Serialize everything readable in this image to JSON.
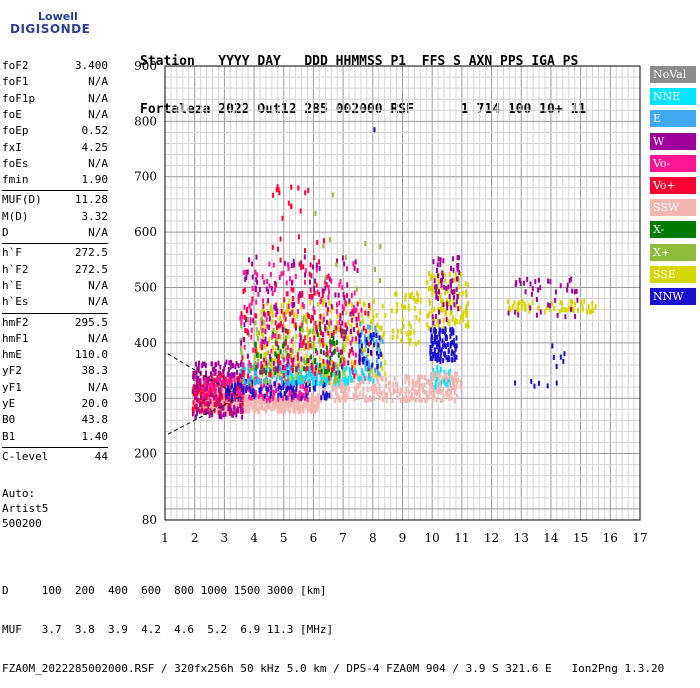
{
  "logo": {
    "lowell": "Lowell",
    "digisonde": "DIGISONDE"
  },
  "header": {
    "line1": "Station   YYYY DAY   DDD HHMMSS P1  FFS S AXN PPS IGA PS",
    "line2": "Fortaleza 2022 Out12 285 002000 RSF      1 714 100 10+ 11"
  },
  "params": [
    {
      "name": "foF2",
      "value": "3.400"
    },
    {
      "name": "foF1",
      "value": "N/A"
    },
    {
      "name": "foF1p",
      "value": "N/A"
    },
    {
      "name": "foE",
      "value": "N/A"
    },
    {
      "name": "foEp",
      "value": "0.52"
    },
    {
      "name": "fxI",
      "value": "4.25"
    },
    {
      "name": "foEs",
      "value": "N/A"
    },
    {
      "name": "fmin",
      "value": "1.90"
    },
    {
      "name": "MUF(D)",
      "value": "11.28"
    },
    {
      "name": "M(D)",
      "value": "3.32"
    },
    {
      "name": "D",
      "value": "N/A"
    },
    {
      "name": "h`F",
      "value": "272.5"
    },
    {
      "name": "h`F2",
      "value": "272.5"
    },
    {
      "name": "h`E",
      "value": "N/A"
    },
    {
      "name": "h`Es",
      "value": "N/A"
    },
    {
      "name": "hmF2",
      "value": "295.5"
    },
    {
      "name": "hmF1",
      "value": "N/A"
    },
    {
      "name": "hmE",
      "value": "110.0"
    },
    {
      "name": "yF2",
      "value": "38.3"
    },
    {
      "name": "yF1",
      "value": "N/A"
    },
    {
      "name": "yE",
      "value": "20.0"
    },
    {
      "name": "B0",
      "value": "43.8"
    },
    {
      "name": "B1",
      "value": "1.40"
    },
    {
      "name": "C-level",
      "value": "44"
    }
  ],
  "auto": {
    "line1": "Auto:",
    "line2": "Artist5",
    "line3": "500200"
  },
  "footer": {
    "line1": "D     100  200  400  600  800 1000 1500 3000 [km]",
    "line2": "MUF   3.7  3.8  3.9  4.2  4.6  5.2  6.9 11.3 [MHz]",
    "line3": "FZA0M_2022285002000.RSF / 320fx256h 50 kHz 5.0 km / DPS-4 FZA0M 904 / 3.9 S 321.6 E   Ion2Png 1.3.20"
  },
  "legend": [
    {
      "label": "NoVal",
      "color": "#8c8c8c"
    },
    {
      "label": "NNE",
      "color": "#00e5ff"
    },
    {
      "label": "E",
      "color": "#3fa9f5"
    },
    {
      "label": "W",
      "color": "#a0009c"
    },
    {
      "label": "Vo-",
      "color": "#ff1493"
    },
    {
      "label": "Vo+",
      "color": "#ff0033"
    },
    {
      "label": "SSW",
      "color": "#f4b6b0"
    },
    {
      "label": "X-",
      "color": "#007a00"
    },
    {
      "label": "X+",
      "color": "#8fbc3a"
    },
    {
      "label": "SSE",
      "color": "#d6d600"
    },
    {
      "label": "NNW",
      "color": "#1a10d0"
    }
  ],
  "chart_data": {
    "type": "scatter",
    "xlim": [
      1,
      17
    ],
    "ylim": [
      80,
      900
    ],
    "xticks": [
      "1",
      "2",
      "3",
      "4",
      "5",
      "6",
      "7",
      "8",
      "9",
      "10",
      "11",
      "12",
      "13",
      "14",
      "15",
      "16",
      "17"
    ],
    "yticks": [
      "80",
      "200",
      "300",
      "400",
      "500",
      "600",
      "700",
      "800",
      "900"
    ],
    "grid": true,
    "minor_grid_x_step": 0.2,
    "minor_grid_y_step": 20,
    "clusters": [
      {
        "series": "SSW",
        "x": [
          1.9,
          3.5
        ],
        "y": [
          280,
          320
        ],
        "n": 260
      },
      {
        "series": "SSW",
        "x": [
          3.5,
          6.2
        ],
        "y": [
          280,
          310
        ],
        "n": 330
      },
      {
        "series": "SSW",
        "x": [
          6.2,
          10.8
        ],
        "y": [
          300,
          345
        ],
        "n": 280
      },
      {
        "series": "Vo+",
        "x": [
          1.9,
          3.6
        ],
        "y": [
          275,
          350
        ],
        "n": 170
      },
      {
        "series": "W",
        "x": [
          1.9,
          3.6
        ],
        "y": [
          270,
          370
        ],
        "n": 150
      },
      {
        "series": "Vo-",
        "x": [
          2.2,
          5.8
        ],
        "y": [
          300,
          340
        ],
        "n": 160
      },
      {
        "series": "NNW",
        "x": [
          3.0,
          6.5
        ],
        "y": [
          305,
          335
        ],
        "n": 100
      },
      {
        "series": "E",
        "x": [
          3.5,
          6.5
        ],
        "y": [
          330,
          365
        ],
        "n": 120
      },
      {
        "series": "NNE",
        "x": [
          5.0,
          8.0
        ],
        "y": [
          330,
          360
        ],
        "n": 110
      },
      {
        "series": "SSE",
        "x": [
          4.0,
          8.4
        ],
        "y": [
          340,
          480
        ],
        "n": 260
      },
      {
        "series": "X+",
        "x": [
          3.5,
          7.0
        ],
        "y": [
          330,
          450
        ],
        "n": 110
      },
      {
        "series": "X-",
        "x": [
          4.0,
          7.0
        ],
        "y": [
          340,
          430
        ],
        "n": 60
      },
      {
        "series": "Vo-",
        "x": [
          3.5,
          7.5
        ],
        "y": [
          350,
          550
        ],
        "n": 170
      },
      {
        "series": "W",
        "x": [
          3.5,
          7.5
        ],
        "y": [
          350,
          560
        ],
        "n": 130
      },
      {
        "series": "Vo+",
        "x": [
          3.5,
          8.0
        ],
        "y": [
          340,
          500
        ],
        "n": 110
      },
      {
        "series": "E",
        "x": [
          7.5,
          8.3
        ],
        "y": [
          340,
          440
        ],
        "n": 40
      },
      {
        "series": "NNW",
        "x": [
          7.5,
          8.3
        ],
        "y": [
          360,
          420
        ],
        "n": 30
      },
      {
        "series": "SSE",
        "x": [
          8.6,
          9.6
        ],
        "y": [
          400,
          500
        ],
        "n": 50
      },
      {
        "series": "SSE",
        "x": [
          9.8,
          11.2
        ],
        "y": [
          430,
          530
        ],
        "n": 110
      },
      {
        "series": "NNW",
        "x": [
          9.9,
          10.8
        ],
        "y": [
          370,
          430
        ],
        "n": 110
      },
      {
        "series": "W",
        "x": [
          9.9,
          10.9
        ],
        "y": [
          440,
          560
        ],
        "n": 60
      },
      {
        "series": "NNE",
        "x": [
          9.9,
          10.6
        ],
        "y": [
          320,
          360
        ],
        "n": 30
      },
      {
        "series": "SSW",
        "x": [
          9.9,
          11.0
        ],
        "y": [
          320,
          350
        ],
        "n": 40
      },
      {
        "series": "SSE",
        "x": [
          12.5,
          15.5
        ],
        "y": [
          460,
          480
        ],
        "n": 60
      },
      {
        "series": "W",
        "x": [
          12.5,
          15.0
        ],
        "y": [
          450,
          520
        ],
        "n": 40
      },
      {
        "series": "NNW",
        "x": [
          14.0,
          14.5
        ],
        "y": [
          360,
          400
        ],
        "n": 6
      },
      {
        "series": "NNW",
        "x": [
          12.6,
          14.6
        ],
        "y": [
          325,
          335
        ],
        "n": 6
      },
      {
        "series": "Vo+",
        "x": [
          4.5,
          6.5
        ],
        "y": [
          480,
          690
        ],
        "n": 35
      },
      {
        "series": "X+",
        "x": [
          6.0,
          8.5
        ],
        "y": [
          500,
          740
        ],
        "n": 12
      },
      {
        "series": "NNW",
        "x": [
          8.0,
          8.1
        ],
        "y": [
          780,
          790
        ],
        "n": 1
      }
    ],
    "lines": [
      {
        "x": [
          1.1,
          3.6
        ],
        "y": [
          380,
          300
        ]
      },
      {
        "x": [
          1.1,
          3.6
        ],
        "y": [
          235,
          305
        ]
      }
    ]
  }
}
